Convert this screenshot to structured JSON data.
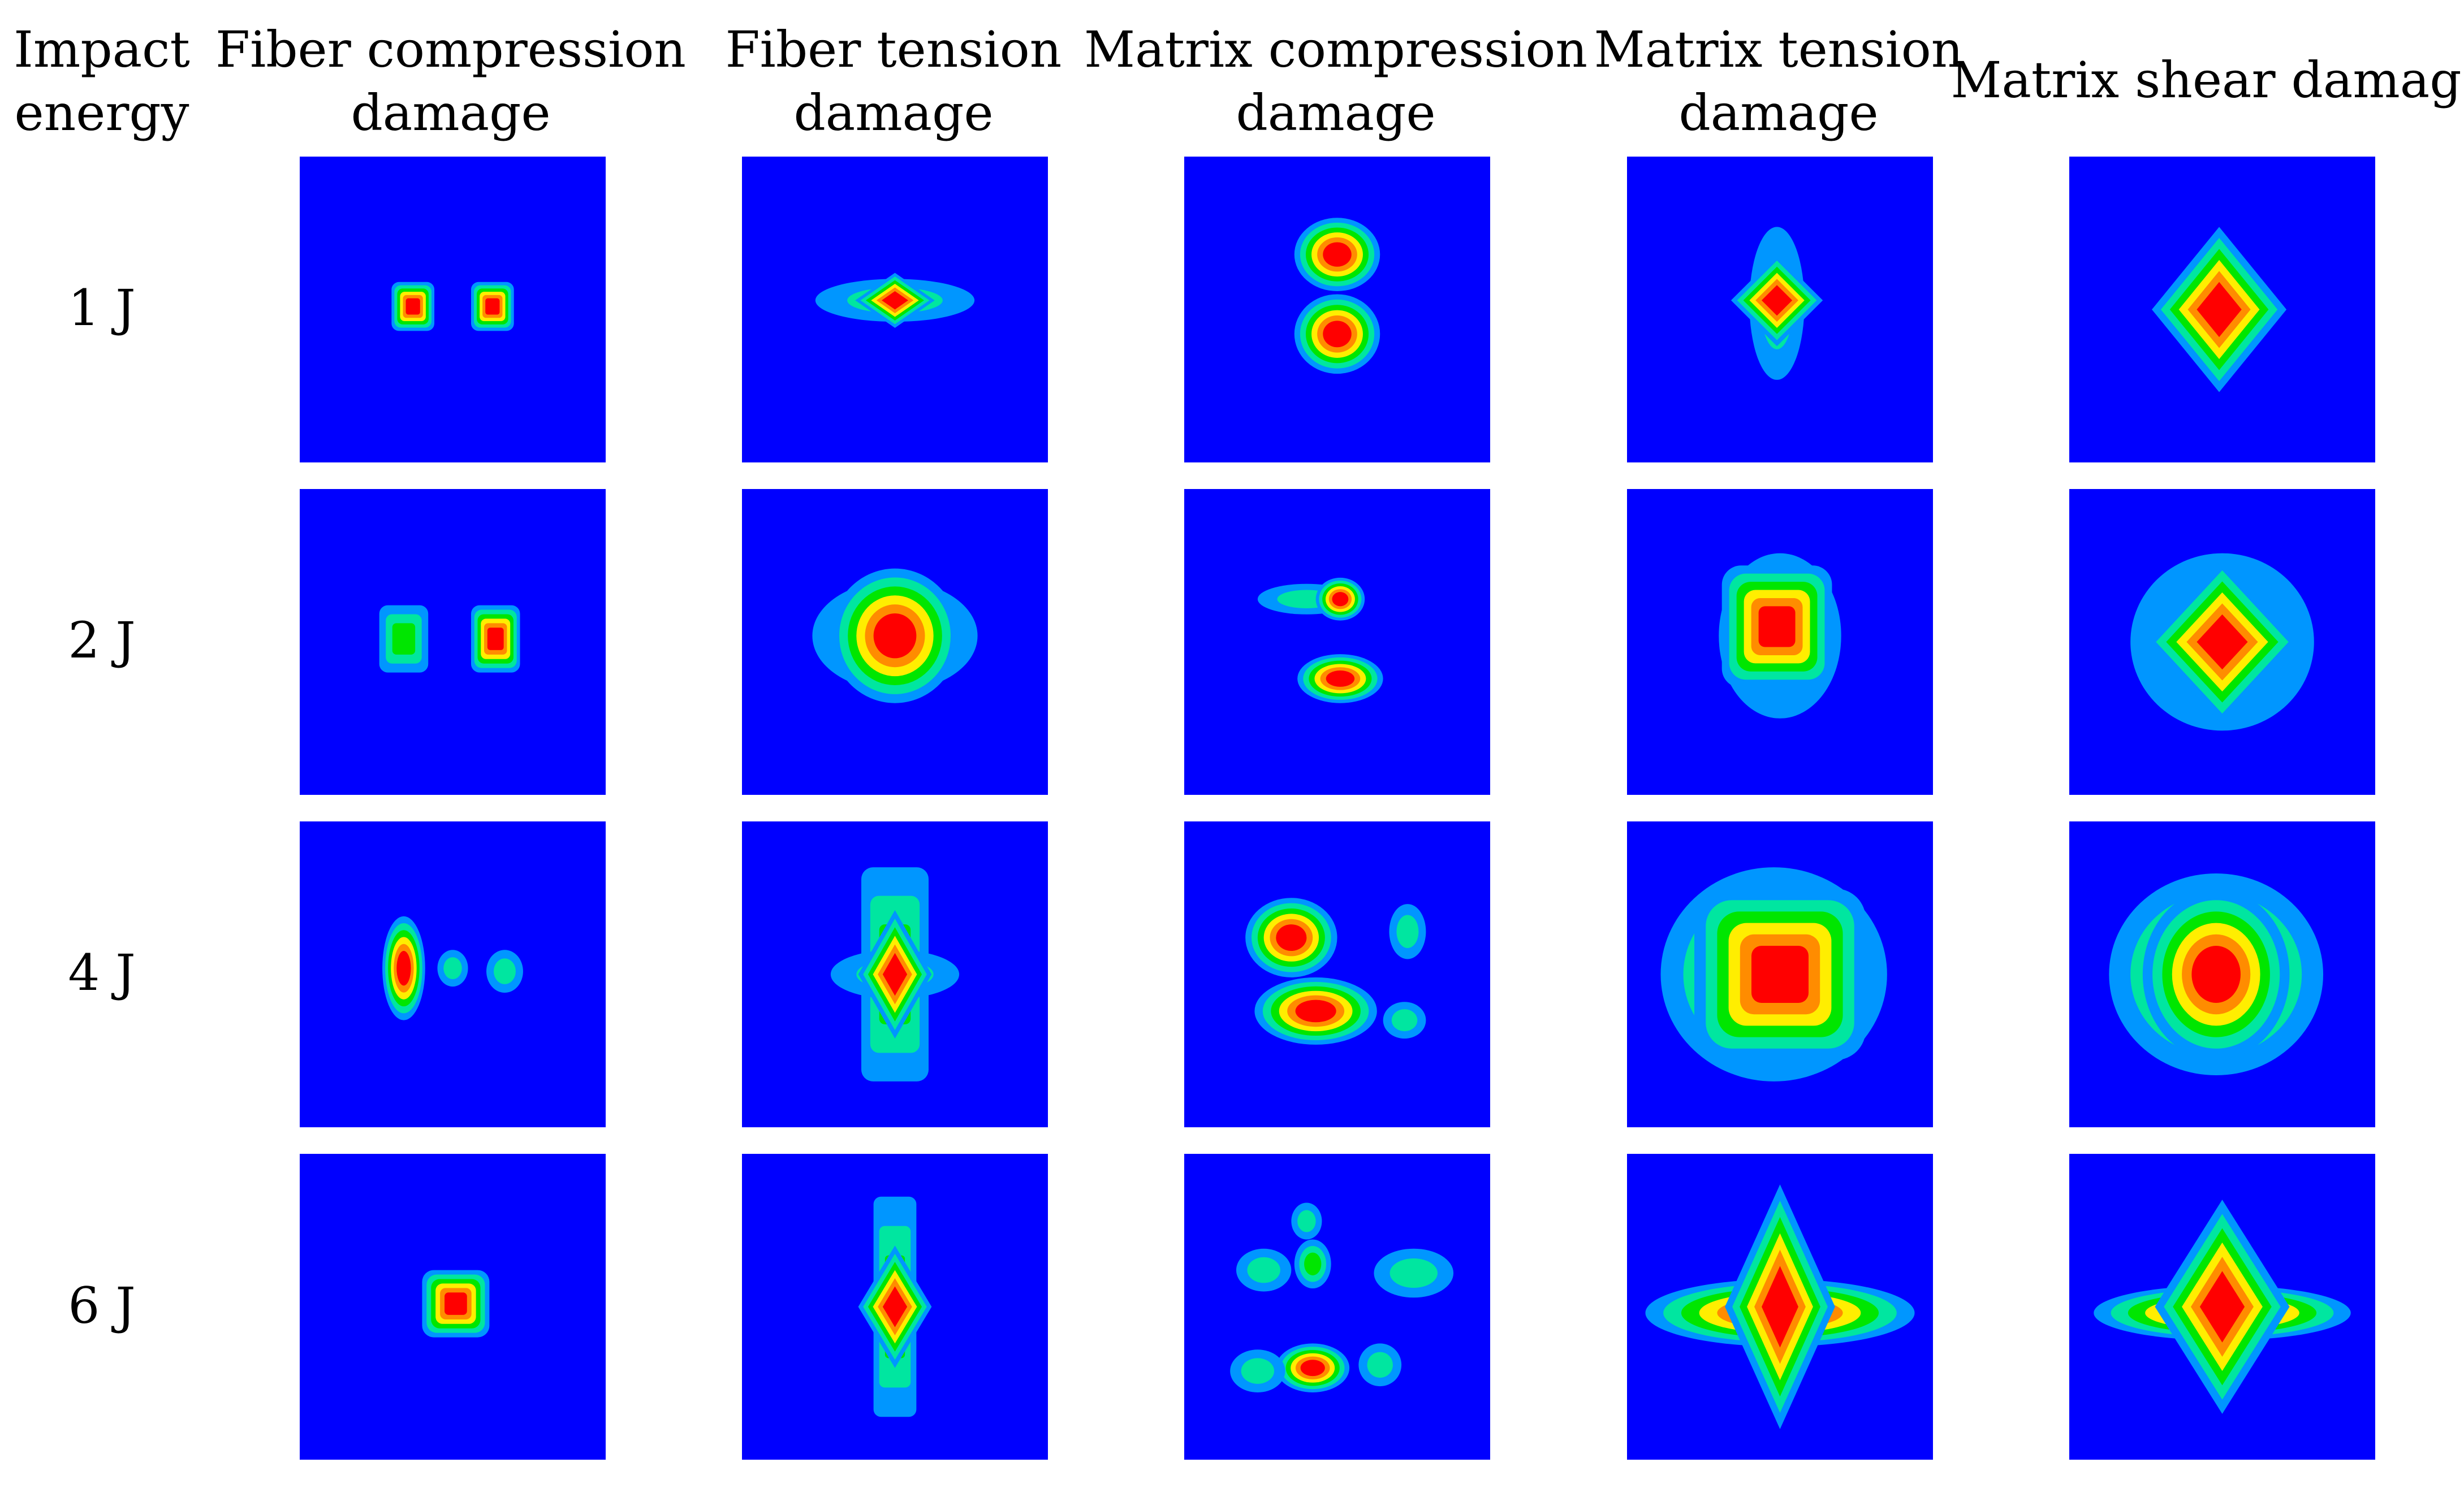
{
  "corner_header": {
    "line1": "Impact",
    "line2": "energy"
  },
  "columns": [
    {
      "line1": "Fiber compression",
      "line2": "damage"
    },
    {
      "line1": "Fiber tension",
      "line2": "damage"
    },
    {
      "line1": "Matrix compression",
      "line2": "damage"
    },
    {
      "line1": "Matrix tension",
      "line2": "damage"
    },
    {
      "line1": "Matrix shear damage",
      "line2": ""
    }
  ],
  "rows": [
    {
      "label": "1 J"
    },
    {
      "label": "2 J"
    },
    {
      "label": "4 J"
    },
    {
      "label": "6 J"
    }
  ],
  "colors": {
    "background": "#0000ff",
    "level1": "#0096ff",
    "level2": "#00e6a0",
    "level3": "#00e600",
    "level4": "#ffee00",
    "level5": "#ff8c00",
    "level6": "#ff0000"
  }
}
